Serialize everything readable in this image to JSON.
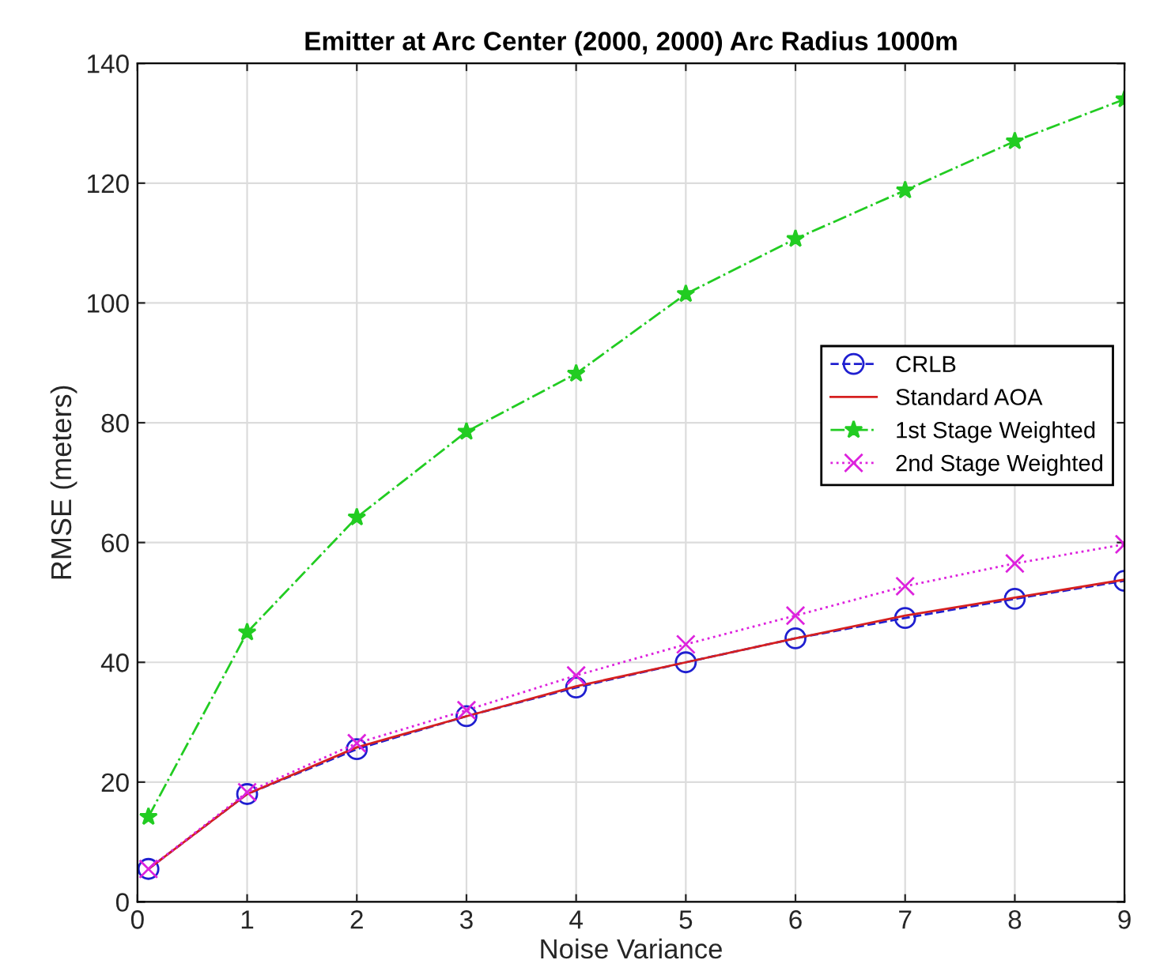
{
  "chart_data": {
    "type": "line",
    "title": "Emitter at Arc Center (2000, 2000) Arc Radius 1000m",
    "xlabel": "Noise Variance",
    "ylabel": "RMSE (meters)",
    "x": [
      0.1,
      1,
      2,
      3,
      4,
      5,
      6,
      7,
      8,
      9
    ],
    "series": [
      {
        "name": "CRLB",
        "color": "#1f1fd0",
        "marker": "circle",
        "line_style": "dashed",
        "values": [
          5.5,
          18,
          25.5,
          31,
          35.8,
          40,
          44,
          47.4,
          50.6,
          53.6
        ]
      },
      {
        "name": "Standard AOA",
        "color": "#d62020",
        "marker": "none",
        "line_style": "solid",
        "values": [
          5.5,
          18,
          25.8,
          31,
          36,
          40,
          44,
          47.8,
          50.8,
          53.8
        ]
      },
      {
        "name": "1st Stage Weighted",
        "color": "#22cc22",
        "marker": "star",
        "line_style": "dashdot",
        "values": [
          14.2,
          45,
          64.2,
          78.5,
          88.2,
          101.5,
          110.7,
          118.8,
          127,
          134
        ]
      },
      {
        "name": "2nd Stage Weighted",
        "color": "#dd22dd",
        "marker": "cross",
        "line_style": "dotted",
        "values": [
          5.5,
          18.3,
          26.5,
          32,
          37.8,
          43,
          47.8,
          52.7,
          56.5,
          59.7
        ]
      }
    ],
    "xlim": [
      0,
      9
    ],
    "xticks": [
      0,
      1,
      2,
      3,
      4,
      5,
      6,
      7,
      8,
      9
    ],
    "ylim": [
      0,
      140
    ],
    "yticks": [
      0,
      20,
      40,
      60,
      80,
      100,
      120,
      140
    ],
    "grid": true,
    "legend": "right"
  }
}
